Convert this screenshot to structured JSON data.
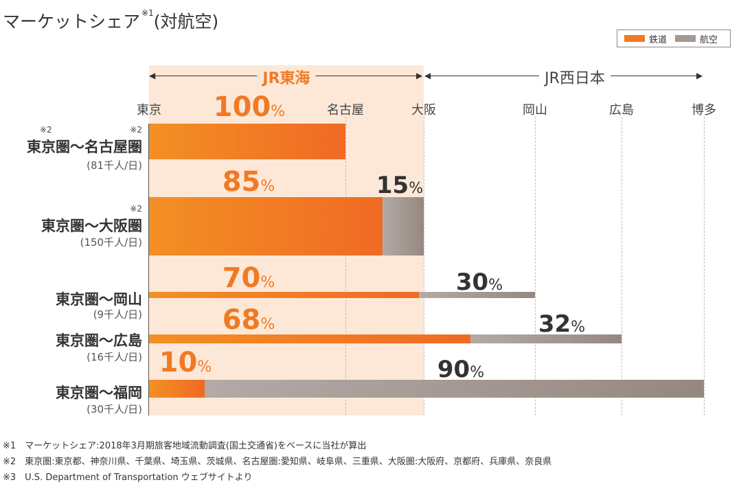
{
  "title": "マーケットシェア",
  "title_note": "※1",
  "title_suffix": "(対航空)",
  "legend": {
    "rail": "鉄道",
    "air": "航空",
    "rail_color": "#f07a24",
    "air_color": "#a49892"
  },
  "chart_data": {
    "type": "bar",
    "title": "マーケットシェア(対航空)",
    "companies": [
      "JR東海",
      "JR西日本"
    ],
    "stations": [
      "東京",
      "名古屋",
      "大阪",
      "岡山",
      "広島",
      "博多"
    ],
    "series": [
      {
        "name": "鉄道"
      },
      {
        "name": "航空"
      }
    ],
    "routes": [
      {
        "name": "東京圏〜名古屋圏",
        "sub": "(81千人/日)",
        "note": "※2",
        "note2": "※2",
        "dest": 1,
        "rail": 100,
        "air": 0,
        "rail_label": "100",
        "air_label": ""
      },
      {
        "name": "東京圏〜大阪圏",
        "sub": "(150千人/日)",
        "note": "※2",
        "dest": 2,
        "rail": 85,
        "air": 15,
        "rail_label": "85",
        "air_label": "15"
      },
      {
        "name": "東京圏〜岡山",
        "sub": "(9千人/日)",
        "dest": 3,
        "rail": 70,
        "air": 30,
        "rail_label": "70",
        "air_label": "30"
      },
      {
        "name": "東京圏〜広島",
        "sub": "(16千人/日)",
        "dest": 4,
        "rail": 68,
        "air": 32,
        "rail_label": "68",
        "air_label": "32"
      },
      {
        "name": "東京圏〜福岡",
        "sub": "(30千人/日)",
        "dest": 5,
        "rail": 10,
        "air": 90,
        "rail_label": "10",
        "air_label": "90"
      }
    ],
    "unit": "%"
  },
  "footnotes": [
    "※1　マーケットシェア:2018年3月期旅客地域流動調査(国土交通省)をベースに当社が算出",
    "※2　東京圏:東京都、神奈川県、千葉県、埼玉県、茨城県、名古屋圏:愛知県、岐阜県、三重県、大阪圏:大阪府、京都府、兵庫県、奈良県",
    "※3　U.S. Department of Transportation ウェブサイトより"
  ]
}
